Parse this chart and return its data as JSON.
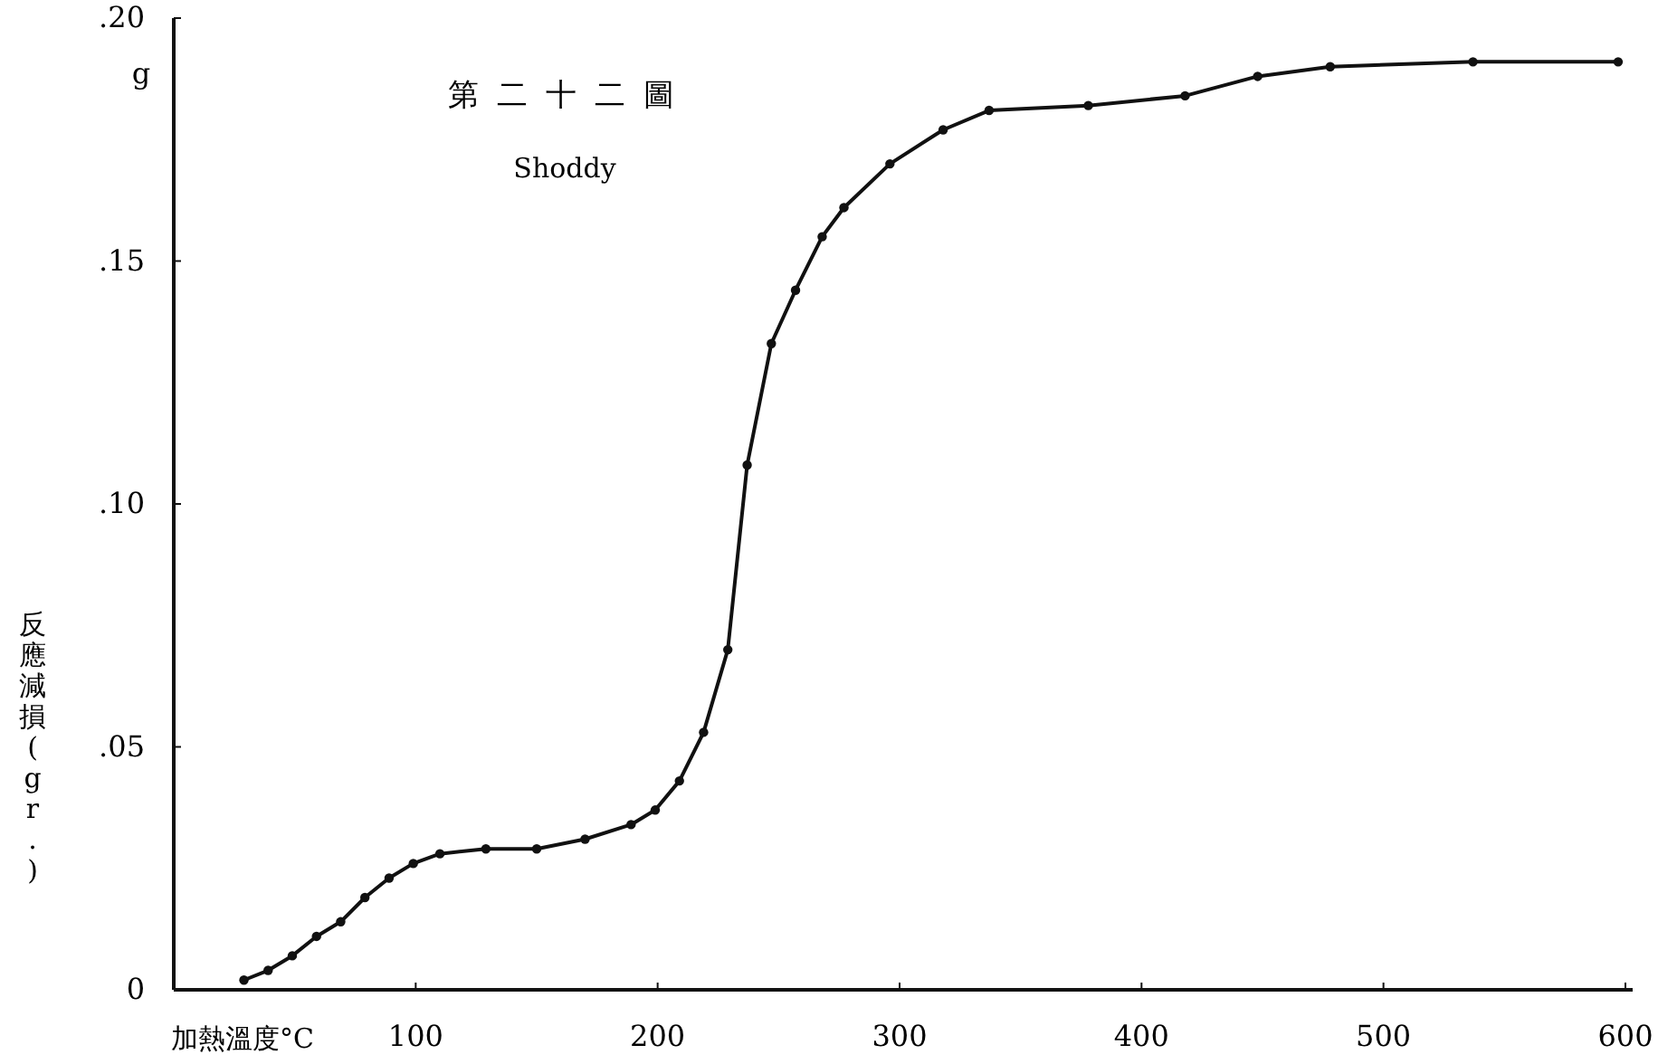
{
  "chart_data": {
    "type": "line",
    "title": "第二十二圖",
    "subtitle": "Shoddy",
    "xlabel": "加熱溫度°C",
    "ylabel": "反應減損(gr.)",
    "annotations": [
      "g"
    ],
    "x": [
      29,
      39,
      49,
      59,
      69,
      79,
      89,
      99,
      110,
      129,
      150,
      170,
      189,
      199,
      209,
      219,
      229,
      237,
      247,
      257,
      268,
      277,
      296,
      318,
      337,
      378,
      418,
      448,
      478,
      537,
      597
    ],
    "series": [
      {
        "color": "#111111",
        "values": [
          0.002,
          0.004,
          0.007,
          0.011,
          0.014,
          0.019,
          0.023,
          0.026,
          0.028,
          0.029,
          0.029,
          0.031,
          0.034,
          0.037,
          0.043,
          0.053,
          0.07,
          0.108,
          0.133,
          0.144,
          0.155,
          0.161,
          0.17,
          0.177,
          0.181,
          0.182,
          0.184,
          0.188,
          0.19,
          0.191,
          0.191
        ]
      }
    ],
    "xlim": [
      0,
      603
    ],
    "ylim": [
      0,
      0.2
    ],
    "xticks": [
      100,
      200,
      300,
      400,
      500,
      600
    ],
    "yticks": [
      {
        "value": 0,
        "label": "0"
      },
      {
        "value": 0.05,
        "label": ".05"
      },
      {
        "value": 0.1,
        "label": ".10"
      },
      {
        "value": 0.15,
        "label": ".15"
      },
      {
        "value": 0.2,
        "label": ".20"
      }
    ],
    "marker": "circle",
    "grid": false
  }
}
